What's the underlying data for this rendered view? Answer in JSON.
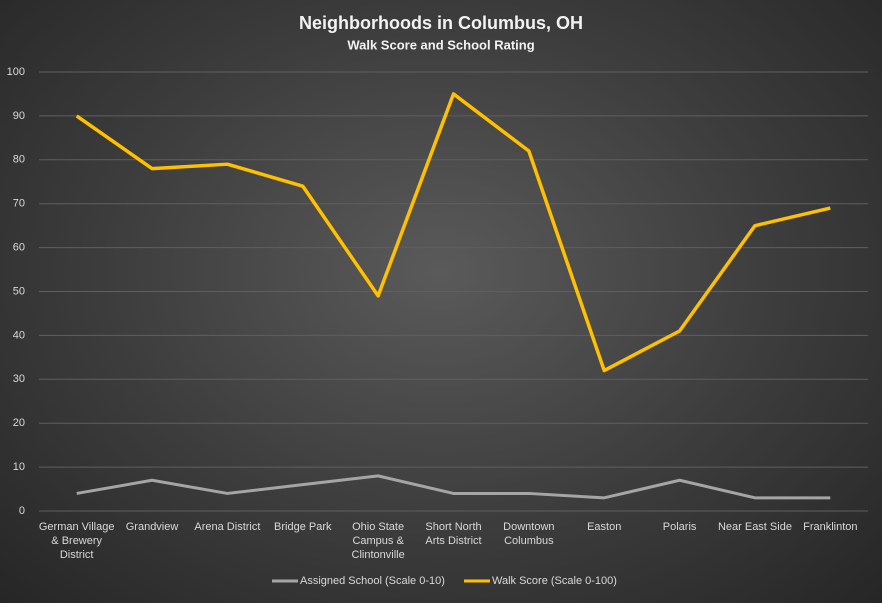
{
  "chart_data": {
    "type": "line",
    "title": "Neighborhoods  in Columbus,  OH",
    "subtitle": "Walk Score and School Rating",
    "categories": [
      "German Village & Brewery District",
      "Grandview",
      "Arena District",
      "Bridge Park",
      "Ohio State Campus & Clintonville",
      "Short North Arts District",
      "Downtown Columbus",
      "Easton",
      "Polaris",
      "Near East Side",
      "Franklinton"
    ],
    "series": [
      {
        "name": "Assigned School (Scale 0-10)",
        "color": "#a5a5a5",
        "values": [
          4,
          7,
          4,
          6,
          8,
          4,
          4,
          3,
          7,
          3,
          3
        ]
      },
      {
        "name": "Walk Score (Scale 0-100)",
        "color": "#ffc000",
        "values": [
          90,
          78,
          79,
          74,
          49,
          95,
          82,
          32,
          41,
          65,
          69
        ]
      }
    ],
    "ylim": [
      0,
      100
    ],
    "yticks": [
      0,
      10,
      20,
      30,
      40,
      50,
      60,
      70,
      80,
      90,
      100
    ],
    "grid": true,
    "legend": "bottom"
  }
}
